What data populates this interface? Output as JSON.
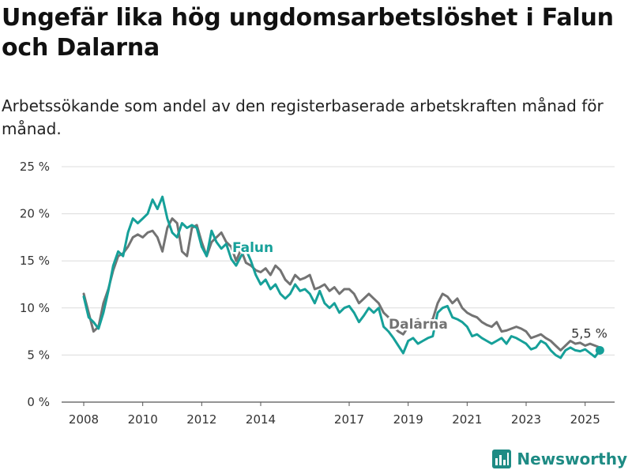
{
  "title": "Ungefär lika hög ungdomsarbetslöshet i Falun och Dalarna",
  "subtitle": "Arbetssökande som andel av den registerbaserade arbetskraften månad för månad.",
  "brand": "Newsworthy",
  "colors": {
    "falun": "#16a099",
    "dalarna": "#737373",
    "grid": "#dcdcdc",
    "brand": "#1e8b84"
  },
  "chart_data": {
    "type": "line",
    "ylim": [
      0,
      25
    ],
    "xlim": [
      "2007-04",
      "2026-01"
    ],
    "y_ticks": [
      "0 %",
      "5 %",
      "10 %",
      "15 %",
      "20 %",
      "25 %"
    ],
    "y_tick_values": [
      0,
      5,
      10,
      15,
      20,
      25
    ],
    "x_ticks": [
      "2008",
      "2010",
      "2012",
      "2014",
      "2017",
      "2019",
      "2021",
      "2023",
      "2025"
    ],
    "grid": "horizontal",
    "last_value_label": "5,5 %",
    "series": [
      {
        "name": "Falun",
        "x": [
          "2008-01",
          "2008-03",
          "2008-05",
          "2008-07",
          "2008-09",
          "2008-11",
          "2009-01",
          "2009-03",
          "2009-05",
          "2009-07",
          "2009-09",
          "2009-11",
          "2010-01",
          "2010-03",
          "2010-05",
          "2010-07",
          "2010-09",
          "2010-11",
          "2011-01",
          "2011-03",
          "2011-05",
          "2011-07",
          "2011-09",
          "2011-11",
          "2012-01",
          "2012-03",
          "2012-05",
          "2012-07",
          "2012-09",
          "2012-11",
          "2013-01",
          "2013-03",
          "2013-05",
          "2013-07",
          "2013-09",
          "2013-11",
          "2014-01",
          "2014-03",
          "2014-05",
          "2014-07",
          "2014-09",
          "2014-11",
          "2015-01",
          "2015-03",
          "2015-05",
          "2015-07",
          "2015-09",
          "2015-11",
          "2016-01",
          "2016-03",
          "2016-05",
          "2016-07",
          "2016-09",
          "2016-11",
          "2017-01",
          "2017-03",
          "2017-05",
          "2017-07",
          "2017-09",
          "2017-11",
          "2018-01",
          "2018-03",
          "2018-05",
          "2018-07",
          "2018-09",
          "2018-11",
          "2019-01",
          "2019-03",
          "2019-05",
          "2019-07",
          "2019-09",
          "2019-11",
          "2020-01",
          "2020-03",
          "2020-05",
          "2020-07",
          "2020-09",
          "2020-11",
          "2021-01",
          "2021-03",
          "2021-05",
          "2021-07",
          "2021-09",
          "2021-11",
          "2022-01",
          "2022-03",
          "2022-05",
          "2022-07",
          "2022-09",
          "2022-11",
          "2023-01",
          "2023-03",
          "2023-05",
          "2023-07",
          "2023-09",
          "2023-11",
          "2024-01",
          "2024-03",
          "2024-05",
          "2024-07",
          "2024-09",
          "2024-11",
          "2025-01",
          "2025-03",
          "2025-05",
          "2025-07"
        ],
        "values": [
          11.2,
          9.0,
          8.5,
          7.8,
          9.5,
          11.8,
          14.5,
          16.0,
          15.5,
          18.0,
          19.5,
          19.0,
          19.5,
          20.0,
          21.5,
          20.5,
          21.8,
          19.5,
          18.0,
          17.5,
          19.0,
          18.5,
          18.8,
          18.5,
          16.5,
          15.5,
          18.2,
          17.0,
          16.3,
          16.8,
          15.2,
          14.5,
          15.5,
          16.2,
          15.0,
          13.5,
          12.5,
          13.0,
          12.0,
          12.5,
          11.5,
          11.0,
          11.5,
          12.5,
          11.8,
          12.0,
          11.5,
          10.5,
          11.8,
          10.5,
          10.0,
          10.5,
          9.5,
          10.0,
          10.2,
          9.5,
          8.5,
          9.2,
          10.0,
          9.5,
          10.0,
          8.0,
          7.5,
          6.8,
          6.0,
          5.2,
          6.5,
          6.8,
          6.2,
          6.5,
          6.8,
          7.0,
          9.5,
          10.0,
          10.2,
          9.0,
          8.8,
          8.5,
          8.0,
          7.0,
          7.2,
          6.8,
          6.5,
          6.2,
          6.5,
          6.8,
          6.2,
          7.0,
          6.8,
          6.5,
          6.2,
          5.6,
          5.8,
          6.5,
          6.2,
          5.5,
          5.0,
          4.7,
          5.5,
          5.8,
          5.5,
          5.4,
          5.6,
          5.2,
          4.8,
          5.5
        ]
      },
      {
        "name": "Dalarna",
        "x": [
          "2008-01",
          "2008-03",
          "2008-05",
          "2008-07",
          "2008-09",
          "2008-11",
          "2009-01",
          "2009-03",
          "2009-05",
          "2009-07",
          "2009-09",
          "2009-11",
          "2010-01",
          "2010-03",
          "2010-05",
          "2010-07",
          "2010-09",
          "2010-11",
          "2011-01",
          "2011-03",
          "2011-05",
          "2011-07",
          "2011-09",
          "2011-11",
          "2012-01",
          "2012-03",
          "2012-05",
          "2012-07",
          "2012-09",
          "2012-11",
          "2013-01",
          "2013-03",
          "2013-05",
          "2013-07",
          "2013-09",
          "2013-11",
          "2014-01",
          "2014-03",
          "2014-05",
          "2014-07",
          "2014-09",
          "2014-11",
          "2015-01",
          "2015-03",
          "2015-05",
          "2015-07",
          "2015-09",
          "2015-11",
          "2016-01",
          "2016-03",
          "2016-05",
          "2016-07",
          "2016-09",
          "2016-11",
          "2017-01",
          "2017-03",
          "2017-05",
          "2017-07",
          "2017-09",
          "2017-11",
          "2018-01",
          "2018-03",
          "2018-05",
          "2018-07",
          "2018-09",
          "2018-11",
          "2019-01",
          "2019-03",
          "2019-05",
          "2019-07",
          "2019-09",
          "2019-11",
          "2020-01",
          "2020-03",
          "2020-05",
          "2020-07",
          "2020-09",
          "2020-11",
          "2021-01",
          "2021-03",
          "2021-05",
          "2021-07",
          "2021-09",
          "2021-11",
          "2022-01",
          "2022-03",
          "2022-05",
          "2022-07",
          "2022-09",
          "2022-11",
          "2023-01",
          "2023-03",
          "2023-05",
          "2023-07",
          "2023-09",
          "2023-11",
          "2024-01",
          "2024-03",
          "2024-05",
          "2024-07",
          "2024-09",
          "2024-11",
          "2025-01",
          "2025-03",
          "2025-05",
          "2025-07"
        ],
        "values": [
          11.5,
          9.5,
          7.5,
          8.0,
          10.5,
          12.0,
          14.0,
          15.5,
          15.8,
          16.5,
          17.5,
          17.8,
          17.5,
          18.0,
          18.2,
          17.5,
          16.0,
          18.5,
          19.5,
          19.0,
          16.0,
          15.5,
          18.5,
          18.8,
          17.0,
          15.5,
          17.0,
          17.5,
          18.0,
          17.0,
          16.5,
          15.0,
          16.2,
          14.8,
          14.5,
          14.0,
          13.8,
          14.2,
          13.5,
          14.5,
          14.0,
          13.0,
          12.5,
          13.5,
          13.0,
          13.2,
          13.5,
          12.0,
          12.2,
          12.5,
          11.8,
          12.2,
          11.5,
          12.0,
          12.0,
          11.5,
          10.5,
          11.0,
          11.5,
          11.0,
          10.5,
          9.5,
          9.0,
          8.0,
          7.5,
          7.2,
          8.0,
          8.5,
          8.8,
          8.0,
          8.5,
          8.8,
          10.5,
          11.5,
          11.2,
          10.5,
          11.0,
          10.0,
          9.5,
          9.2,
          9.0,
          8.5,
          8.2,
          8.0,
          8.5,
          7.5,
          7.6,
          7.8,
          8.0,
          7.8,
          7.5,
          6.8,
          7.0,
          7.2,
          6.8,
          6.5,
          6.0,
          5.5,
          6.0,
          6.5,
          6.2,
          6.3,
          6.0,
          6.2,
          6.0,
          5.8
        ]
      }
    ]
  }
}
